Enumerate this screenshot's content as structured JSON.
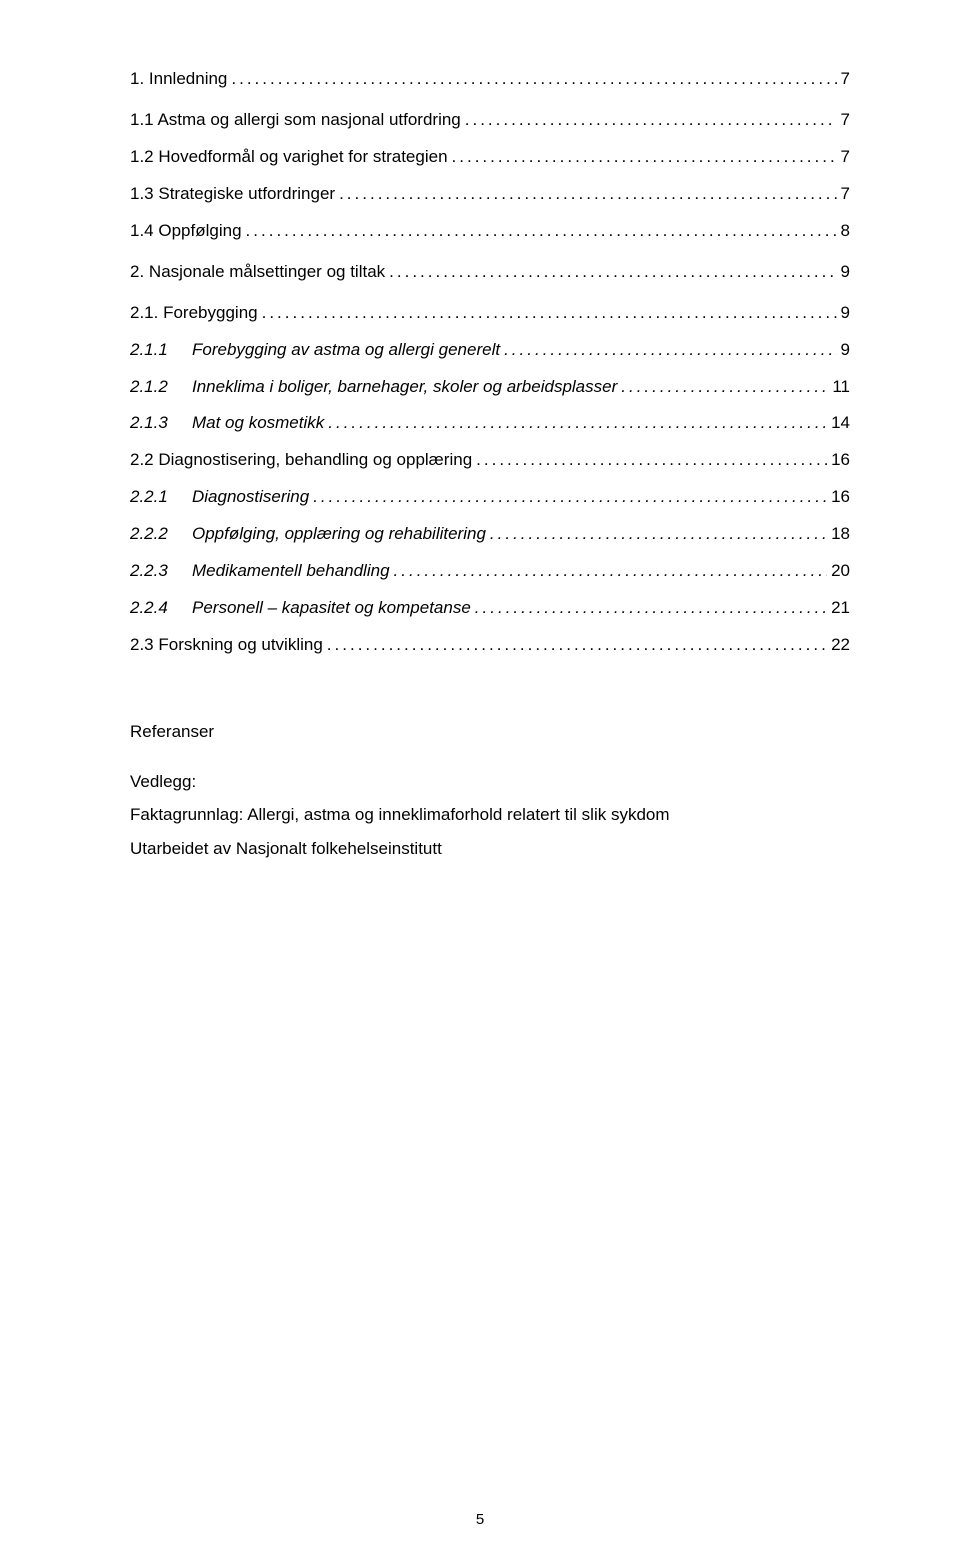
{
  "colors": {
    "background": "#ffffff",
    "text": "#000000"
  },
  "typography": {
    "font_family": "Arial",
    "body_fontsize_pt": 12
  },
  "toc": [
    {
      "level": 1,
      "italic": false,
      "num": "1.",
      "title": "Innledning",
      "page": "7"
    },
    {
      "level": 2,
      "italic": false,
      "num": "1.1",
      "title": "Astma og allergi som nasjonal utfordring",
      "page": "7"
    },
    {
      "level": 2,
      "italic": false,
      "num": "1.2",
      "title": "Hovedformål og varighet for strategien",
      "page": "7"
    },
    {
      "level": 2,
      "italic": false,
      "num": "1.3",
      "title": "Strategiske utfordringer",
      "page": "7"
    },
    {
      "level": 2,
      "italic": false,
      "num": "1.4",
      "title": "Oppfølging",
      "page": "8"
    },
    {
      "level": 1,
      "italic": false,
      "num": "2.",
      "title": "Nasjonale målsettinger og tiltak",
      "page": "9"
    },
    {
      "level": 2,
      "italic": false,
      "num": "2.1.",
      "title": "Forebygging",
      "page": "9"
    },
    {
      "level": 3,
      "italic": true,
      "num": "2.1.1",
      "title": "Forebygging av astma og allergi generelt",
      "page": "9"
    },
    {
      "level": 3,
      "italic": true,
      "num": "2.1.2",
      "title": "Inneklima i boliger, barnehager, skoler og arbeidsplasser",
      "page": "11"
    },
    {
      "level": 3,
      "italic": true,
      "num": "2.1.3",
      "title": "Mat og kosmetikk",
      "page": "14"
    },
    {
      "level": 2,
      "italic": false,
      "num": "2.2",
      "title": "Diagnostisering, behandling og opplæring",
      "page": "16"
    },
    {
      "level": 3,
      "italic": true,
      "num": "2.2.1",
      "title": "Diagnostisering",
      "page": "16"
    },
    {
      "level": 3,
      "italic": true,
      "num": "2.2.2",
      "title": "Oppfølging, opplæring og rehabilitering",
      "page": "18"
    },
    {
      "level": 3,
      "italic": true,
      "num": "2.2.3",
      "title": "Medikamentell behandling",
      "page": "20"
    },
    {
      "level": 3,
      "italic": true,
      "num": "2.2.4",
      "title": "Personell – kapasitet og kompetanse",
      "page": "21"
    },
    {
      "level": 2,
      "italic": false,
      "num": "2.3",
      "title": "Forskning og utvikling",
      "page": "22"
    }
  ],
  "references": {
    "heading": "Referanser",
    "vedlegg_label": "Vedlegg:",
    "line1": "Faktagrunnlag: Allergi, astma og inneklimaforhold relatert til slik sykdom",
    "line2": "Utarbeidet av Nasjonalt folkehelseinstitutt"
  },
  "page_number": "5",
  "dots_fill": "......................................................................................................................................................................................................"
}
